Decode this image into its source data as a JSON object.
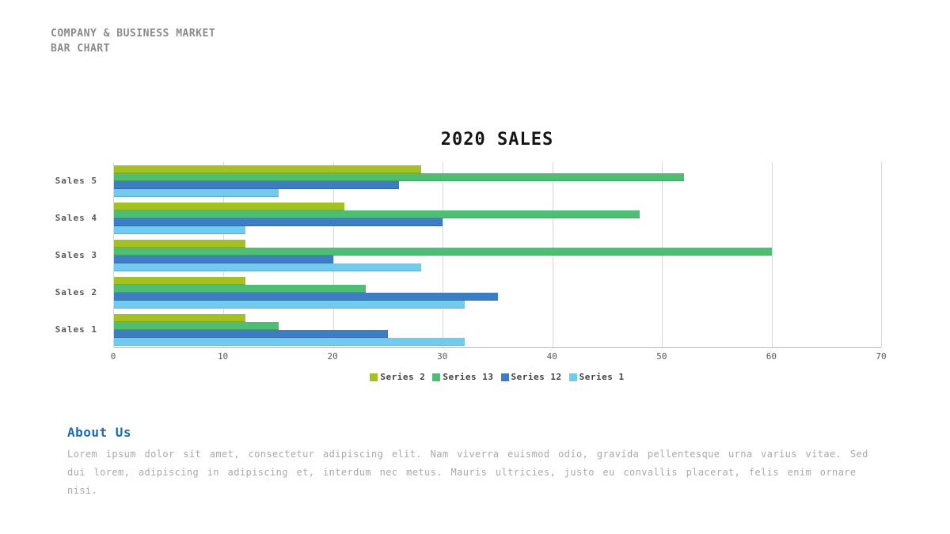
{
  "header": {
    "line1": "COMPANY & BUSINESS MARKET",
    "line2": "BAR CHART"
  },
  "chart_data": {
    "type": "bar",
    "orientation": "horizontal",
    "title": "2020 SALES",
    "xlabel": "",
    "ylabel": "",
    "category_order": "top-to-bottom",
    "categories": [
      "Sales 5",
      "Sales 4",
      "Sales 3",
      "Sales 2",
      "Sales 1"
    ],
    "series": [
      {
        "name": "Series 2",
        "color": "#a3c222",
        "values": [
          28,
          21,
          12,
          12,
          12
        ]
      },
      {
        "name": "Series 13",
        "color": "#4ebe72",
        "values": [
          52,
          48,
          60,
          23,
          15
        ]
      },
      {
        "name": "Series 12",
        "color": "#3c7dc4",
        "values": [
          26,
          30,
          20,
          35,
          25
        ]
      },
      {
        "name": "Series 1",
        "color": "#70cbee",
        "values": [
          15,
          12,
          28,
          32,
          32
        ]
      }
    ],
    "xticks": [
      0,
      10,
      20,
      30,
      40,
      50,
      60,
      70
    ],
    "xlim": [
      0,
      70
    ],
    "grid": true,
    "legend_position": "bottom"
  },
  "about": {
    "title": "About Us",
    "title_color": "#1c6bad",
    "body": "Lorem ipsum dolor sit amet, consectetur adipiscing elit. Nam viverra euismod odio, gravida pellentesque urna varius vitae. Sed dui lorem, adipiscing in adipiscing et, interdum nec metus. Mauris ultricies, justo eu convallis placerat, felis enim ornare nisi."
  }
}
